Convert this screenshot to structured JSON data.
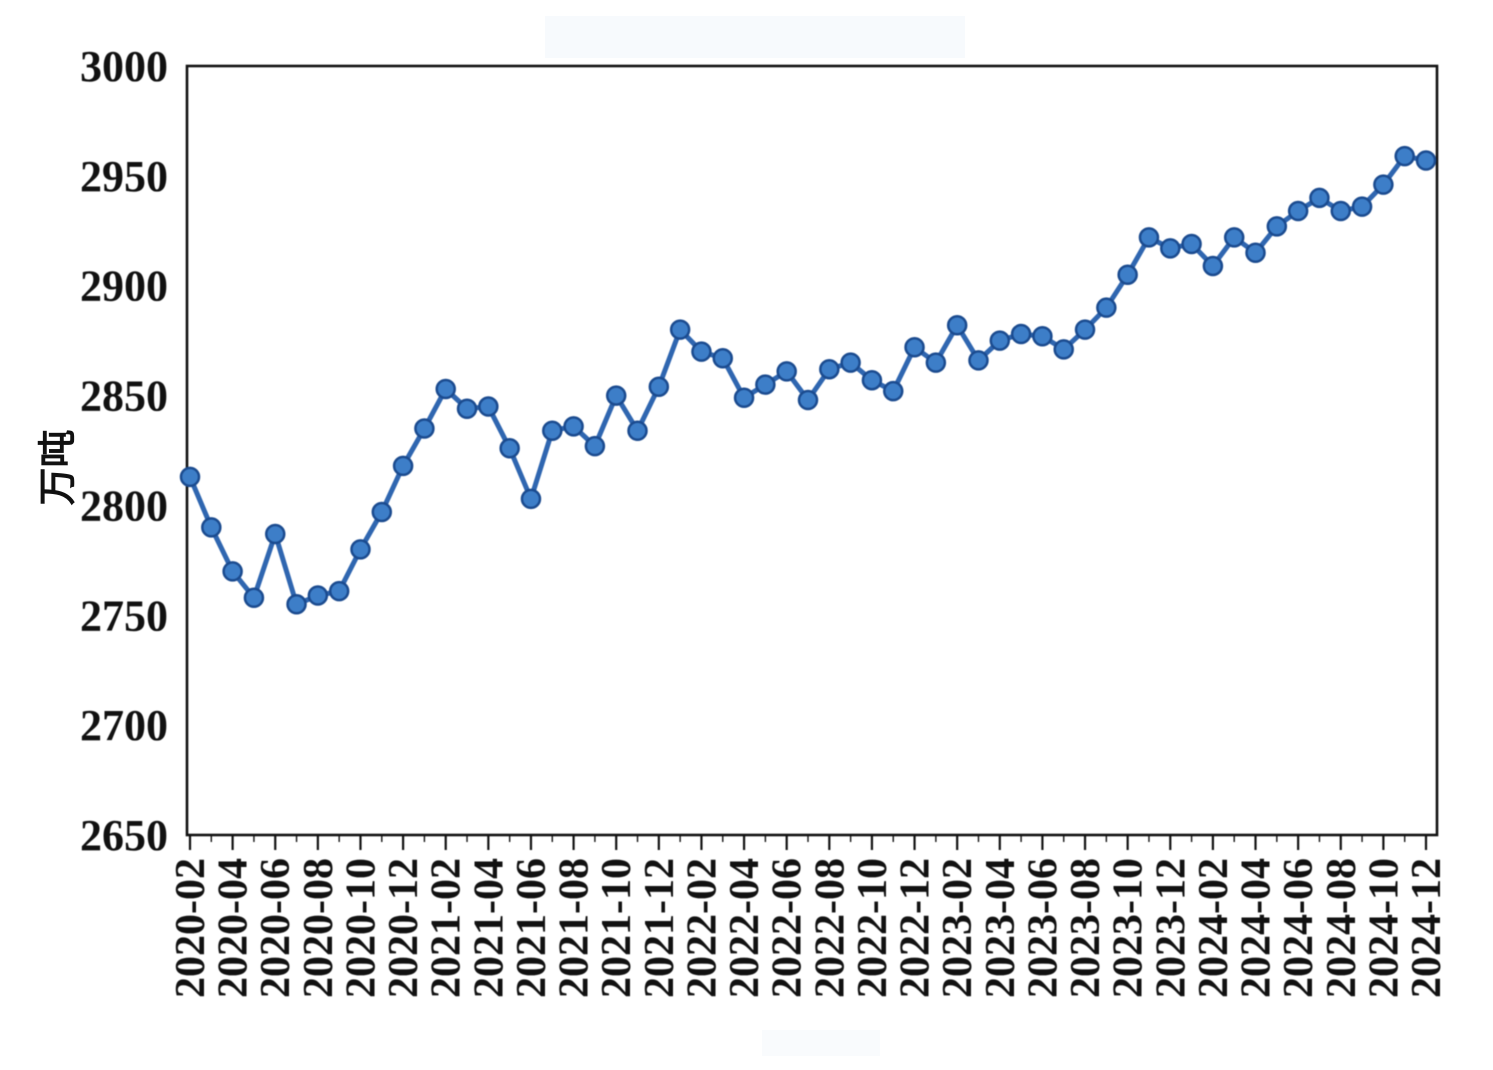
{
  "page": {
    "background": "#ffffff"
  },
  "chart_data": {
    "type": "line",
    "title": "",
    "xlabel": "",
    "ylabel": "万吨",
    "ylim": [
      2650,
      3000
    ],
    "ytick_step": 50,
    "yticks": [
      2650,
      2700,
      2750,
      2800,
      2850,
      2900,
      2950,
      3000
    ],
    "grid": "off",
    "legend": "none",
    "xtick_label_every": 2,
    "xtick_labels": [
      "2020-02",
      "2020-04",
      "2020-06",
      "2020-08",
      "2020-10",
      "2020-12",
      "2021-02",
      "2021-04",
      "2021-06",
      "2021-08",
      "2021-10",
      "2021-12",
      "2022-02",
      "2022-04",
      "2022-06",
      "2022-08",
      "2022-10",
      "2022-12",
      "2023-02",
      "2023-04",
      "2023-06",
      "2023-08",
      "2023-10",
      "2023-12",
      "2024-02",
      "2024-04",
      "2024-06",
      "2024-08",
      "2024-10",
      "2024-12"
    ],
    "x": [
      "2020-02",
      "2020-03",
      "2020-04",
      "2020-05",
      "2020-06",
      "2020-07",
      "2020-08",
      "2020-09",
      "2020-10",
      "2020-11",
      "2020-12",
      "2021-01",
      "2021-02",
      "2021-03",
      "2021-04",
      "2021-05",
      "2021-06",
      "2021-07",
      "2021-08",
      "2021-09",
      "2021-10",
      "2021-11",
      "2021-12",
      "2022-01",
      "2022-02",
      "2022-03",
      "2022-04",
      "2022-05",
      "2022-06",
      "2022-07",
      "2022-08",
      "2022-09",
      "2022-10",
      "2022-11",
      "2022-12",
      "2023-01",
      "2023-02",
      "2023-03",
      "2023-04",
      "2023-05",
      "2023-06",
      "2023-07",
      "2023-08",
      "2023-09",
      "2023-10",
      "2023-11",
      "2023-12",
      "2024-01",
      "2024-02",
      "2024-03",
      "2024-04",
      "2024-05",
      "2024-06",
      "2024-07",
      "2024-08",
      "2024-09",
      "2024-10",
      "2024-11",
      "2024-12"
    ],
    "values": [
      2813,
      2790,
      2770,
      2758,
      2787,
      2755,
      2759,
      2761,
      2780,
      2797,
      2818,
      2835,
      2853,
      2844,
      2845,
      2826,
      2803,
      2834,
      2836,
      2827,
      2850,
      2834,
      2854,
      2880,
      2870,
      2867,
      2849,
      2855,
      2861,
      2848,
      2862,
      2865,
      2857,
      2852,
      2872,
      2865,
      2882,
      2866,
      2875,
      2878,
      2877,
      2871,
      2880,
      2890,
      2905,
      2922,
      2917,
      2919,
      2909,
      2922,
      2915,
      2927,
      2934,
      2940,
      2934,
      2936,
      2946,
      2959,
      2957
    ],
    "colors": {
      "line": "#2f66b0",
      "marker_fill": "#3d7ec8",
      "marker_edge": "#1b4b8f",
      "axis": "#111111",
      "text": "#111111"
    }
  }
}
